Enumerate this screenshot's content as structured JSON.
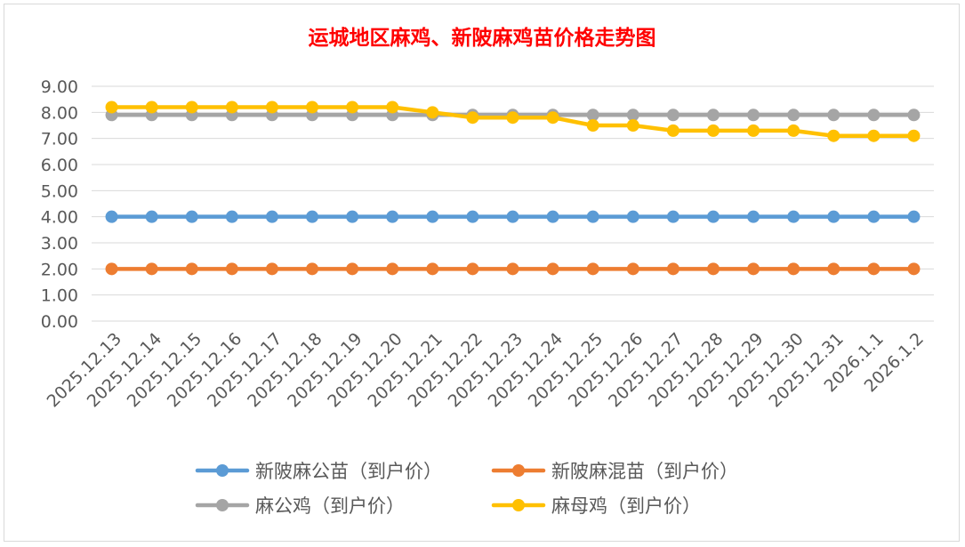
{
  "chart_data": {
    "type": "line",
    "title": "运城地区麻鸡、新陂麻鸡苗价格走势图",
    "categories": [
      "2025.12.13",
      "2025.12.14",
      "2025.12.15",
      "2025.12.16",
      "2025.12.17",
      "2025.12.18",
      "2025.12.19",
      "2025.12.20",
      "2025.12.21",
      "2025.12.22",
      "2025.12.23",
      "2025.12.24",
      "2025.12.25",
      "2025.12.26",
      "2025.12.27",
      "2025.12.28",
      "2025.12.29",
      "2025.12.30",
      "2025.12.31",
      "2026.1.1",
      "2026.1.2"
    ],
    "ylim": [
      0,
      9
    ],
    "yticks": [
      "0.00",
      "1.00",
      "2.00",
      "3.00",
      "4.00",
      "5.00",
      "6.00",
      "7.00",
      "8.00",
      "9.00"
    ],
    "grid": true,
    "legend_position": "bottom",
    "series": [
      {
        "name": "新陂麻公苗（到户价）",
        "color": "#5B9BD5",
        "values": [
          4.0,
          4.0,
          4.0,
          4.0,
          4.0,
          4.0,
          4.0,
          4.0,
          4.0,
          4.0,
          4.0,
          4.0,
          4.0,
          4.0,
          4.0,
          4.0,
          4.0,
          4.0,
          4.0,
          4.0,
          4.0
        ]
      },
      {
        "name": "新陂麻混苗（到户价）",
        "color": "#ED7D31",
        "values": [
          2.0,
          2.0,
          2.0,
          2.0,
          2.0,
          2.0,
          2.0,
          2.0,
          2.0,
          2.0,
          2.0,
          2.0,
          2.0,
          2.0,
          2.0,
          2.0,
          2.0,
          2.0,
          2.0,
          2.0,
          2.0
        ]
      },
      {
        "name": "麻公鸡（到户价）",
        "color": "#A5A5A5",
        "values": [
          7.9,
          7.9,
          7.9,
          7.9,
          7.9,
          7.9,
          7.9,
          7.9,
          7.9,
          7.9,
          7.9,
          7.9,
          7.9,
          7.9,
          7.9,
          7.9,
          7.9,
          7.9,
          7.9,
          7.9,
          7.9
        ]
      },
      {
        "name": "麻母鸡（到户价）",
        "color": "#FFC000",
        "values": [
          8.2,
          8.2,
          8.2,
          8.2,
          8.2,
          8.2,
          8.2,
          8.2,
          8.0,
          7.8,
          7.8,
          7.8,
          7.5,
          7.5,
          7.3,
          7.3,
          7.3,
          7.3,
          7.1,
          7.1,
          7.1
        ]
      }
    ]
  },
  "colors": {
    "title": "#FF0000",
    "axis_text": "#595959",
    "grid": "#D9D9D9"
  }
}
